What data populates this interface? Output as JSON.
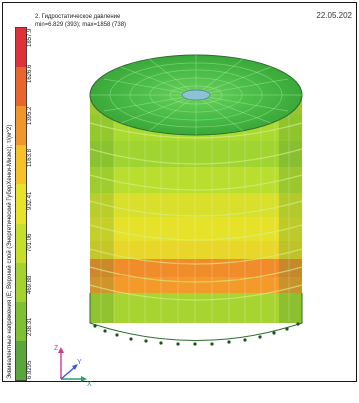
{
  "header": {
    "date": "22.05.202",
    "title_line1": "2. Гидростатическое давление",
    "title_line2": "min=6.829 (393); max=1858 (738)"
  },
  "legend": {
    "vertical_label": "Эквивалентные напряжения (Е; Верхний слой (Энергетический ГуберХенки-Мизес); т/(м^2)",
    "ticks": [
      "6.8295",
      "238.31",
      "469.88",
      "701.06",
      "932.41",
      "1163.8",
      "1395.2",
      "1626.6",
      "1857.9"
    ],
    "colors": [
      "#5aa63c",
      "#7fbf34",
      "#a4d22e",
      "#c7df2a",
      "#e7e22a",
      "#f5c22a",
      "#f1962a",
      "#e9652e",
      "#e0303a"
    ]
  },
  "axes": {
    "y_label": "Y",
    "z_label": "Z",
    "x_label": "X"
  },
  "colors": {
    "background": "#ffffff",
    "top_light": "#4fbf4a",
    "top_mid": "#3aa83a",
    "band_orange": "#f08c2a",
    "band_yellow": "#e6e22a",
    "band_light": "#b9de2f"
  }
}
